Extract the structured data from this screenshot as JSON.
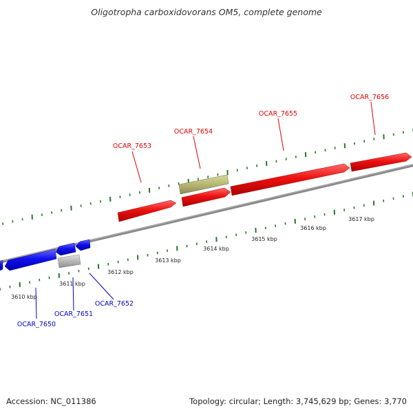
{
  "title": "Oligotropha carboxidovorans OM5, complete genome",
  "footer": {
    "accession": "Accession: NC_011386",
    "summary": "Topology: circular; Length: 3,745,629 bp; Genes: 3,770"
  },
  "colors": {
    "forward_gene": "#ee1111",
    "reverse_gene": "#1111ee",
    "rna_gene": "#bbbb77",
    "other_gene": "#bbbbbb",
    "backbone": "#888888",
    "ticks": "#227722"
  },
  "tick_labels": [
    "3610 kbp",
    "3611 kbp",
    "3612 kbp",
    "3613 kbp",
    "3614 kbp",
    "3615 kbp",
    "3616 kbp",
    "3617 kbp"
  ],
  "genes": [
    {
      "id": "OCAR_7650",
      "strand": "reverse",
      "type": "cds"
    },
    {
      "id": "OCAR_7651",
      "strand": "reverse",
      "type": "other"
    },
    {
      "id": "OCAR_7652",
      "strand": "reverse",
      "type": "cds"
    },
    {
      "id": "OCAR_7653",
      "strand": "forward",
      "type": "cds"
    },
    {
      "id": "OCAR_7654",
      "strand": "forward",
      "type": "rna"
    },
    {
      "id": "OCAR_7655",
      "strand": "forward",
      "type": "cds"
    },
    {
      "id": "OCAR_7656",
      "strand": "forward",
      "type": "cds"
    }
  ]
}
